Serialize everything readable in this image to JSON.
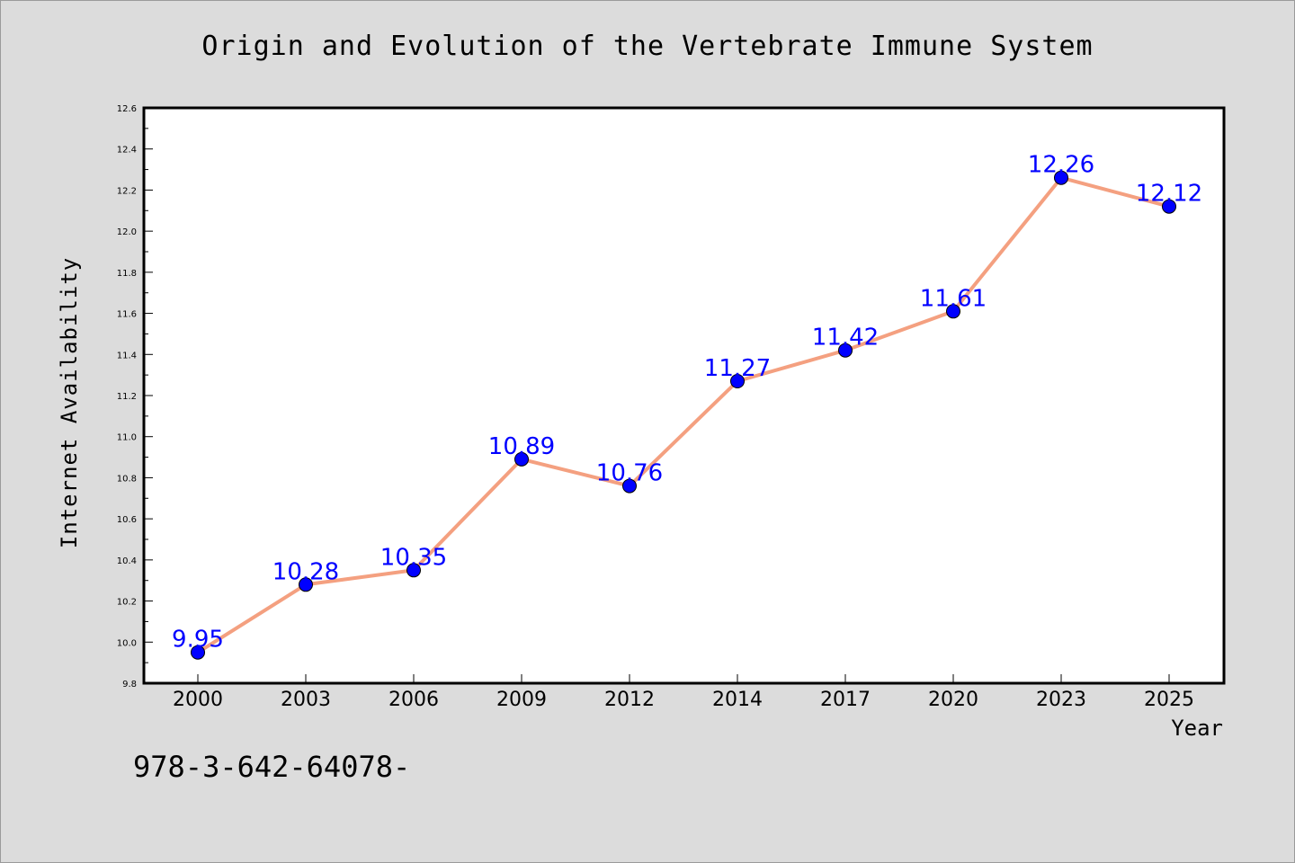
{
  "chart_data": {
    "type": "line",
    "title": "Origin and Evolution of the Vertebrate Immune System",
    "xlabel": "Year",
    "ylabel": "Internet Availability",
    "categories": [
      "2000",
      "2003",
      "2006",
      "2009",
      "2012",
      "2014",
      "2017",
      "2020",
      "2023",
      "2025"
    ],
    "values": [
      9.95,
      10.28,
      10.35,
      10.89,
      10.76,
      11.27,
      11.42,
      11.61,
      12.26,
      12.12
    ],
    "data_labels": [
      "9.95",
      "10.28",
      "10.35",
      "10.89",
      "10.76",
      "11.27",
      "11.42",
      "11.61",
      "12.26",
      "12.12"
    ],
    "ylim": [
      9.8,
      12.6
    ],
    "yticks": [
      "9.8",
      "10.0",
      "10.2",
      "10.4",
      "10.6",
      "10.8",
      "11.0",
      "11.2",
      "11.4",
      "11.6",
      "11.8",
      "12.0",
      "12.2",
      "12.4",
      "12.6"
    ],
    "grid": false,
    "colors": {
      "line": "#f4a080",
      "marker": "#0000ff",
      "label": "#0000ff",
      "background": "#dcdcdc",
      "plot_area": "#ffffff"
    }
  },
  "footer": {
    "text": "978-3-642-64078-"
  }
}
